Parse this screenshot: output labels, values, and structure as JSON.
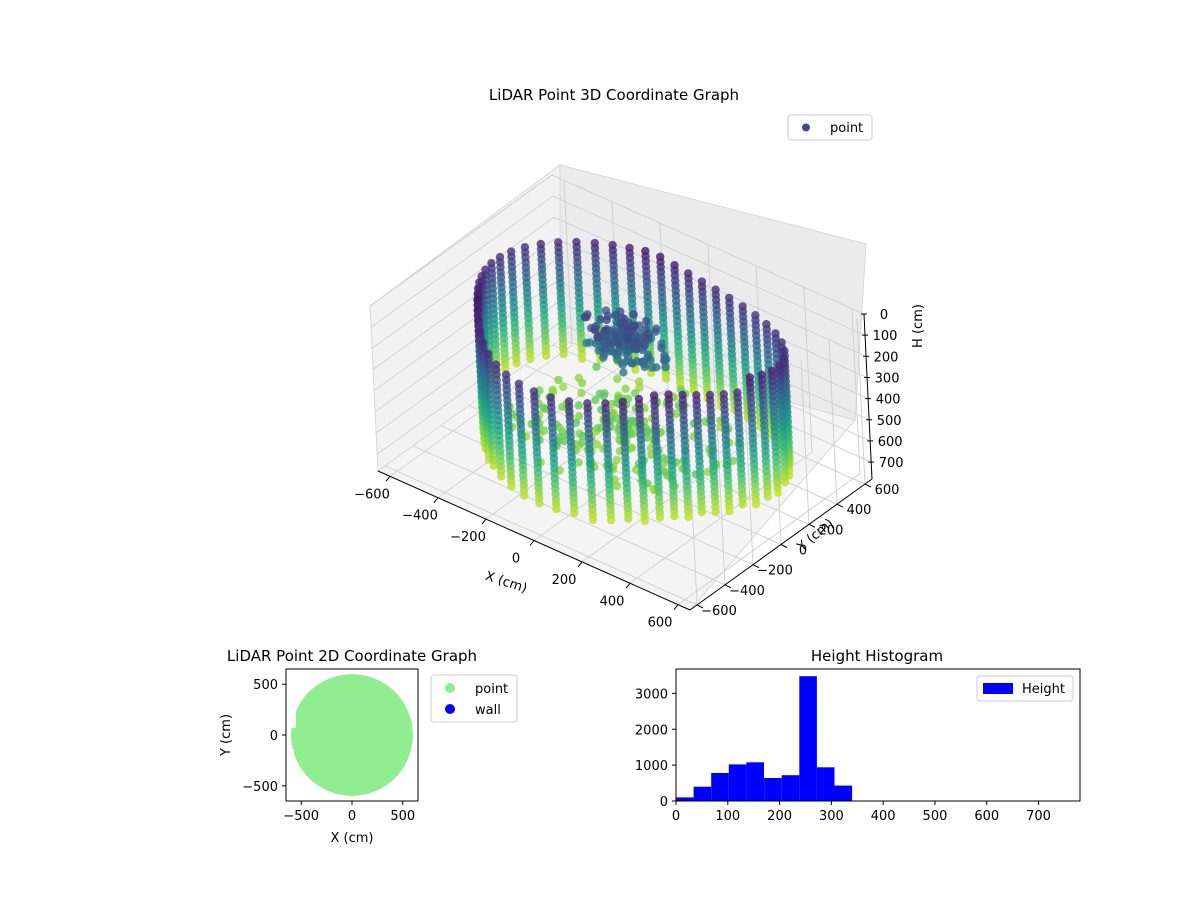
{
  "chart_data": [
    {
      "type": "scatter3d",
      "title": "LiDAR Point 3D Coordinate Graph",
      "xlabel": "X (cm)",
      "ylabel": "Y (cm)",
      "zlabel": "H (cm)",
      "xticks": [
        "−600",
        "−400",
        "−200",
        "0",
        "200",
        "400",
        "600"
      ],
      "yticks": [
        "−600",
        "−400",
        "−200",
        "0",
        "200",
        "400",
        "600"
      ],
      "zticks": [
        "0",
        "100",
        "200",
        "300",
        "400",
        "500",
        "600",
        "700"
      ],
      "xlim": [
        -650,
        650
      ],
      "ylim": [
        -650,
        650
      ],
      "zlim": [
        0,
        780
      ],
      "z_inverted": true,
      "colormap": "viridis",
      "legend": {
        "position": "upper-right",
        "entries": [
          {
            "name": "point",
            "color": "#3b4b8c"
          }
        ]
      },
      "grid": true,
      "point_cloud": {
        "shape": "ring of vertical wall columns around a room with a low floor patch and a dense cluster near the center",
        "ring_radius": 600,
        "height_range": [
          0,
          700
        ]
      }
    },
    {
      "type": "scatter",
      "title": "LiDAR Point 2D Coordinate Graph",
      "xlabel": "X (cm)",
      "ylabel": "Y (cm)",
      "xticks": [
        "−500",
        "0",
        "500"
      ],
      "yticks": [
        "−500",
        "0",
        "500"
      ],
      "xlim": [
        -650,
        650
      ],
      "ylim": [
        -650,
        650
      ],
      "legend": {
        "position": "outside-right",
        "entries": [
          {
            "name": "point",
            "color": "#90ee90"
          },
          {
            "name": "wall",
            "color": "#0000ff"
          }
        ]
      },
      "series": [
        {
          "name": "point",
          "color": "#90ee90",
          "shape": "filled disk",
          "radius": 600
        },
        {
          "name": "wall",
          "color": "#0000ff",
          "points": []
        }
      ]
    },
    {
      "type": "bar",
      "title": "Height Histogram",
      "xticks": [
        "0",
        "100",
        "200",
        "300",
        "400",
        "500",
        "600",
        "700"
      ],
      "yticks": [
        "0",
        "1000",
        "2000",
        "3000"
      ],
      "xlim": [
        0,
        780
      ],
      "ylim": [
        0,
        3680
      ],
      "bin_width": 34,
      "bins": [
        {
          "x0": 0,
          "value": 100
        },
        {
          "x0": 34,
          "value": 400
        },
        {
          "x0": 68,
          "value": 780
        },
        {
          "x0": 102,
          "value": 1020
        },
        {
          "x0": 136,
          "value": 1080
        },
        {
          "x0": 170,
          "value": 640
        },
        {
          "x0": 204,
          "value": 720
        },
        {
          "x0": 238,
          "value": 3480
        },
        {
          "x0": 272,
          "value": 940
        },
        {
          "x0": 306,
          "value": 430
        },
        {
          "x0": 340,
          "value": 0
        }
      ],
      "color": "#0000ff",
      "legend": {
        "position": "upper-right",
        "entries": [
          {
            "name": "Height",
            "color": "#0000ff"
          }
        ]
      }
    }
  ]
}
